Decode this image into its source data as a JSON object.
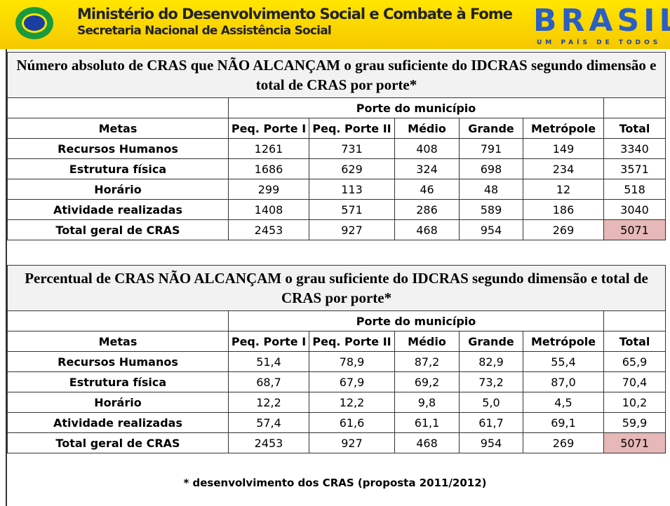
{
  "header": {
    "ministry": "Ministério do Desenvolvimento Social e Combate à Fome",
    "secretariat": "Secretaria Nacional de Assistência Social",
    "brand": "BRASIL",
    "slogan": "UM PAÍS DE TODOS"
  },
  "tables": [
    {
      "title": "Número absoluto de CRAS que NÃO ALCANÇAM  o grau suficiente do IDCRAS  segundo dimensão e total de CRAS por porte*",
      "group_header": "Porte do município",
      "columns": [
        "Metas",
        "Peq. Porte I",
        "Peq. Porte II",
        "Médio",
        "Grande",
        "Metrópole",
        "Total"
      ],
      "rows": [
        [
          "Recursos Humanos",
          1261,
          731,
          408,
          791,
          149,
          3340
        ],
        [
          "Estrutura física",
          1686,
          629,
          324,
          698,
          234,
          3571
        ],
        [
          "Horário",
          299,
          113,
          46,
          48,
          12,
          518
        ],
        [
          "Atividade realizadas",
          1408,
          571,
          286,
          589,
          186,
          3040
        ],
        [
          "Total geral de CRAS",
          2453,
          927,
          468,
          954,
          269,
          5071
        ]
      ]
    },
    {
      "title": "Percentual de CRAS NÃO ALCANÇAM  o grau suficiente do IDCRAS  segundo dimensão e total de CRAS por porte*",
      "group_header": "Porte do município",
      "columns": [
        "Metas",
        "Peq. Porte I",
        "Peq. Porte II",
        "Médio",
        "Grande",
        "Metrópole",
        "Total"
      ],
      "rows": [
        [
          "Recursos Humanos",
          "51,4",
          "78,9",
          "87,2",
          "82,9",
          "55,4",
          "65,9"
        ],
        [
          "Estrutura física",
          "68,7",
          "67,9",
          "69,2",
          "73,2",
          "87,0",
          "70,4"
        ],
        [
          "Horário",
          "12,2",
          "12,2",
          "9,8",
          "5,0",
          "4,5",
          "10,2"
        ],
        [
          "Atividade realizadas",
          "57,4",
          "61,6",
          "61,1",
          "61,7",
          "69,1",
          "59,9"
        ],
        [
          "Total geral de CRAS",
          2453,
          927,
          468,
          954,
          269,
          5071
        ]
      ]
    }
  ],
  "footnote": "* desenvolvimento dos CRAS (proposta 2011/2012)"
}
